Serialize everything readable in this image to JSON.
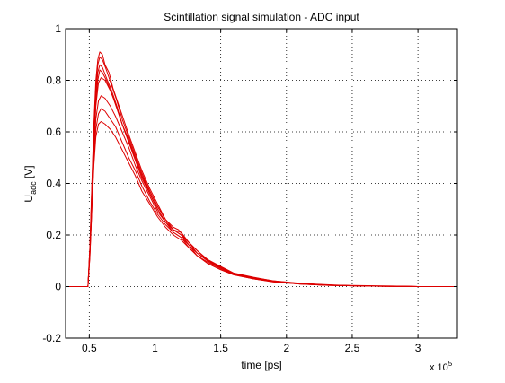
{
  "chart_data": {
    "type": "line",
    "title": "Scintillation signal simulation - ADC input",
    "xlabel": "time [ps]",
    "ylabel_main": "U",
    "ylabel_sub": "adc",
    "ylabel_unit": " [V]",
    "x_multiplier": {
      "base": "x 10",
      "exponent": "5"
    },
    "xlim": [
      32000,
      330000
    ],
    "ylim": [
      -0.2,
      1
    ],
    "x_ticks": [
      50000,
      100000,
      150000,
      200000,
      250000,
      300000
    ],
    "x_tick_labels": [
      "0.5",
      "1",
      "1.5",
      "2",
      "2.5",
      "3"
    ],
    "y_ticks": [
      -0.2,
      0,
      0.2,
      0.4,
      0.6,
      0.8,
      1
    ],
    "y_tick_labels": [
      "-0.2",
      "0",
      "0.2",
      "0.4",
      "0.6",
      "0.8",
      "1"
    ],
    "grid": true,
    "line_color": "#dd0000",
    "series": [
      {
        "values": [
          [
            32000,
            0
          ],
          [
            49000,
            0
          ],
          [
            50500,
            0.14
          ],
          [
            52000,
            0.35
          ],
          [
            53500,
            0.55
          ],
          [
            55000,
            0.7
          ],
          [
            57000,
            0.79
          ],
          [
            59000,
            0.81
          ],
          [
            62000,
            0.8
          ],
          [
            66000,
            0.76
          ],
          [
            70000,
            0.71
          ],
          [
            75000,
            0.63
          ],
          [
            80000,
            0.56
          ],
          [
            85000,
            0.5
          ],
          [
            90000,
            0.43
          ],
          [
            96000,
            0.36
          ],
          [
            102000,
            0.3
          ],
          [
            108000,
            0.25
          ],
          [
            114000,
            0.22
          ],
          [
            120000,
            0.2
          ],
          [
            126000,
            0.16
          ],
          [
            132000,
            0.13
          ],
          [
            140000,
            0.1
          ],
          [
            150000,
            0.07
          ],
          [
            160000,
            0.05
          ],
          [
            175000,
            0.03
          ],
          [
            190000,
            0.02
          ],
          [
            210000,
            0.01
          ],
          [
            230000,
            0.005
          ],
          [
            260000,
            0.002
          ],
          [
            300000,
            0
          ],
          [
            330000,
            0
          ]
        ]
      },
      {
        "values": [
          [
            32000,
            0
          ],
          [
            49000,
            0
          ],
          [
            50500,
            0.16
          ],
          [
            52000,
            0.4
          ],
          [
            53500,
            0.63
          ],
          [
            55000,
            0.8
          ],
          [
            56500,
            0.88
          ],
          [
            58000,
            0.91
          ],
          [
            60000,
            0.9
          ],
          [
            62000,
            0.86
          ],
          [
            65000,
            0.83
          ],
          [
            68000,
            0.77
          ],
          [
            72000,
            0.71
          ],
          [
            76000,
            0.65
          ],
          [
            80000,
            0.59
          ],
          [
            85000,
            0.52
          ],
          [
            90000,
            0.45
          ],
          [
            96000,
            0.38
          ],
          [
            102000,
            0.32
          ],
          [
            108000,
            0.26
          ],
          [
            114000,
            0.23
          ],
          [
            118000,
            0.22
          ],
          [
            124000,
            0.18
          ],
          [
            130000,
            0.15
          ],
          [
            138000,
            0.11
          ],
          [
            148000,
            0.08
          ],
          [
            160000,
            0.05
          ],
          [
            175000,
            0.035
          ],
          [
            190000,
            0.02
          ],
          [
            210000,
            0.012
          ],
          [
            240000,
            0.005
          ],
          [
            280000,
            0.002
          ],
          [
            300000,
            0
          ],
          [
            330000,
            0
          ]
        ]
      },
      {
        "values": [
          [
            32000,
            0
          ],
          [
            49000,
            0
          ],
          [
            50500,
            0.12
          ],
          [
            52000,
            0.3
          ],
          [
            53500,
            0.47
          ],
          [
            55000,
            0.58
          ],
          [
            57000,
            0.63
          ],
          [
            59000,
            0.64
          ],
          [
            62000,
            0.63
          ],
          [
            66000,
            0.61
          ],
          [
            70000,
            0.58
          ],
          [
            75000,
            0.53
          ],
          [
            80000,
            0.48
          ],
          [
            85000,
            0.43
          ],
          [
            90000,
            0.37
          ],
          [
            96000,
            0.32
          ],
          [
            102000,
            0.27
          ],
          [
            108000,
            0.23
          ],
          [
            114000,
            0.2
          ],
          [
            120000,
            0.18
          ],
          [
            126000,
            0.15
          ],
          [
            132000,
            0.12
          ],
          [
            140000,
            0.09
          ],
          [
            150000,
            0.065
          ],
          [
            160000,
            0.045
          ],
          [
            175000,
            0.03
          ],
          [
            190000,
            0.018
          ],
          [
            210000,
            0.01
          ],
          [
            230000,
            0.005
          ],
          [
            260000,
            0.002
          ],
          [
            300000,
            0
          ],
          [
            330000,
            0
          ]
        ]
      },
      {
        "values": [
          [
            32000,
            0
          ],
          [
            49000,
            0
          ],
          [
            50500,
            0.15
          ],
          [
            52000,
            0.37
          ],
          [
            53500,
            0.58
          ],
          [
            55000,
            0.74
          ],
          [
            56500,
            0.83
          ],
          [
            58000,
            0.86
          ],
          [
            60000,
            0.85
          ],
          [
            63000,
            0.81
          ],
          [
            67000,
            0.76
          ],
          [
            71000,
            0.7
          ],
          [
            75000,
            0.63
          ],
          [
            80000,
            0.57
          ],
          [
            85000,
            0.5
          ],
          [
            90000,
            0.43
          ],
          [
            96000,
            0.37
          ],
          [
            102000,
            0.31
          ],
          [
            108000,
            0.26
          ],
          [
            114000,
            0.22
          ],
          [
            120000,
            0.2
          ],
          [
            126000,
            0.17
          ],
          [
            132000,
            0.13
          ],
          [
            140000,
            0.1
          ],
          [
            150000,
            0.075
          ],
          [
            160000,
            0.05
          ],
          [
            175000,
            0.035
          ],
          [
            190000,
            0.022
          ],
          [
            210000,
            0.012
          ],
          [
            230000,
            0.006
          ],
          [
            260000,
            0.002
          ],
          [
            300000,
            0
          ],
          [
            330000,
            0
          ]
        ]
      },
      {
        "values": [
          [
            32000,
            0
          ],
          [
            49000,
            0
          ],
          [
            50500,
            0.13
          ],
          [
            52000,
            0.33
          ],
          [
            53500,
            0.52
          ],
          [
            55000,
            0.65
          ],
          [
            57000,
            0.72
          ],
          [
            59000,
            0.74
          ],
          [
            62000,
            0.73
          ],
          [
            66000,
            0.7
          ],
          [
            70000,
            0.66
          ],
          [
            75000,
            0.6
          ],
          [
            80000,
            0.54
          ],
          [
            85000,
            0.47
          ],
          [
            90000,
            0.41
          ],
          [
            96000,
            0.35
          ],
          [
            102000,
            0.29
          ],
          [
            108000,
            0.25
          ],
          [
            114000,
            0.21
          ],
          [
            120000,
            0.19
          ],
          [
            126000,
            0.16
          ],
          [
            132000,
            0.12
          ],
          [
            140000,
            0.095
          ],
          [
            150000,
            0.07
          ],
          [
            160000,
            0.048
          ],
          [
            175000,
            0.032
          ],
          [
            190000,
            0.02
          ],
          [
            210000,
            0.011
          ],
          [
            230000,
            0.005
          ],
          [
            260000,
            0.002
          ],
          [
            300000,
            0
          ],
          [
            330000,
            0
          ]
        ]
      },
      {
        "values": [
          [
            32000,
            0
          ],
          [
            49000,
            0
          ],
          [
            50500,
            0.14
          ],
          [
            52000,
            0.36
          ],
          [
            53500,
            0.56
          ],
          [
            55000,
            0.71
          ],
          [
            56500,
            0.8
          ],
          [
            58000,
            0.84
          ],
          [
            60000,
            0.83
          ],
          [
            63000,
            0.8
          ],
          [
            67000,
            0.75
          ],
          [
            71000,
            0.69
          ],
          [
            75000,
            0.63
          ],
          [
            80000,
            0.56
          ],
          [
            85000,
            0.49
          ],
          [
            90000,
            0.42
          ],
          [
            96000,
            0.36
          ],
          [
            102000,
            0.3
          ],
          [
            108000,
            0.25
          ],
          [
            114000,
            0.22
          ],
          [
            120000,
            0.2
          ],
          [
            126000,
            0.16
          ],
          [
            132000,
            0.13
          ],
          [
            140000,
            0.1
          ],
          [
            150000,
            0.072
          ],
          [
            160000,
            0.05
          ],
          [
            175000,
            0.034
          ],
          [
            190000,
            0.021
          ],
          [
            210000,
            0.012
          ],
          [
            230000,
            0.006
          ],
          [
            260000,
            0.002
          ],
          [
            300000,
            0
          ],
          [
            330000,
            0
          ]
        ]
      },
      {
        "values": [
          [
            32000,
            0
          ],
          [
            49000,
            0
          ],
          [
            50500,
            0.12
          ],
          [
            52000,
            0.31
          ],
          [
            53500,
            0.49
          ],
          [
            55000,
            0.61
          ],
          [
            57000,
            0.67
          ],
          [
            59000,
            0.69
          ],
          [
            62000,
            0.68
          ],
          [
            66000,
            0.65
          ],
          [
            70000,
            0.62
          ],
          [
            75000,
            0.56
          ],
          [
            80000,
            0.5
          ],
          [
            85000,
            0.45
          ],
          [
            90000,
            0.39
          ],
          [
            96000,
            0.33
          ],
          [
            102000,
            0.28
          ],
          [
            108000,
            0.24
          ],
          [
            114000,
            0.21
          ],
          [
            120000,
            0.19
          ],
          [
            126000,
            0.15
          ],
          [
            132000,
            0.12
          ],
          [
            140000,
            0.09
          ],
          [
            150000,
            0.066
          ],
          [
            160000,
            0.046
          ],
          [
            175000,
            0.03
          ],
          [
            190000,
            0.019
          ],
          [
            210000,
            0.01
          ],
          [
            230000,
            0.005
          ],
          [
            260000,
            0.002
          ],
          [
            300000,
            0
          ],
          [
            330000,
            0
          ]
        ]
      },
      {
        "values": [
          [
            32000,
            0
          ],
          [
            49000,
            0
          ],
          [
            50500,
            0.15
          ],
          [
            52000,
            0.39
          ],
          [
            53500,
            0.61
          ],
          [
            55000,
            0.77
          ],
          [
            56500,
            0.86
          ],
          [
            58000,
            0.89
          ],
          [
            60000,
            0.88
          ],
          [
            63000,
            0.84
          ],
          [
            67000,
            0.78
          ],
          [
            71000,
            0.72
          ],
          [
            75000,
            0.65
          ],
          [
            80000,
            0.58
          ],
          [
            85000,
            0.51
          ],
          [
            90000,
            0.44
          ],
          [
            96000,
            0.37
          ],
          [
            102000,
            0.31
          ],
          [
            108000,
            0.26
          ],
          [
            114000,
            0.22
          ],
          [
            120000,
            0.21
          ],
          [
            126000,
            0.17
          ],
          [
            132000,
            0.14
          ],
          [
            140000,
            0.105
          ],
          [
            150000,
            0.078
          ],
          [
            160000,
            0.052
          ],
          [
            175000,
            0.036
          ],
          [
            190000,
            0.022
          ],
          [
            210000,
            0.013
          ],
          [
            230000,
            0.006
          ],
          [
            260000,
            0.002
          ],
          [
            300000,
            0
          ],
          [
            330000,
            0
          ]
        ]
      }
    ]
  }
}
